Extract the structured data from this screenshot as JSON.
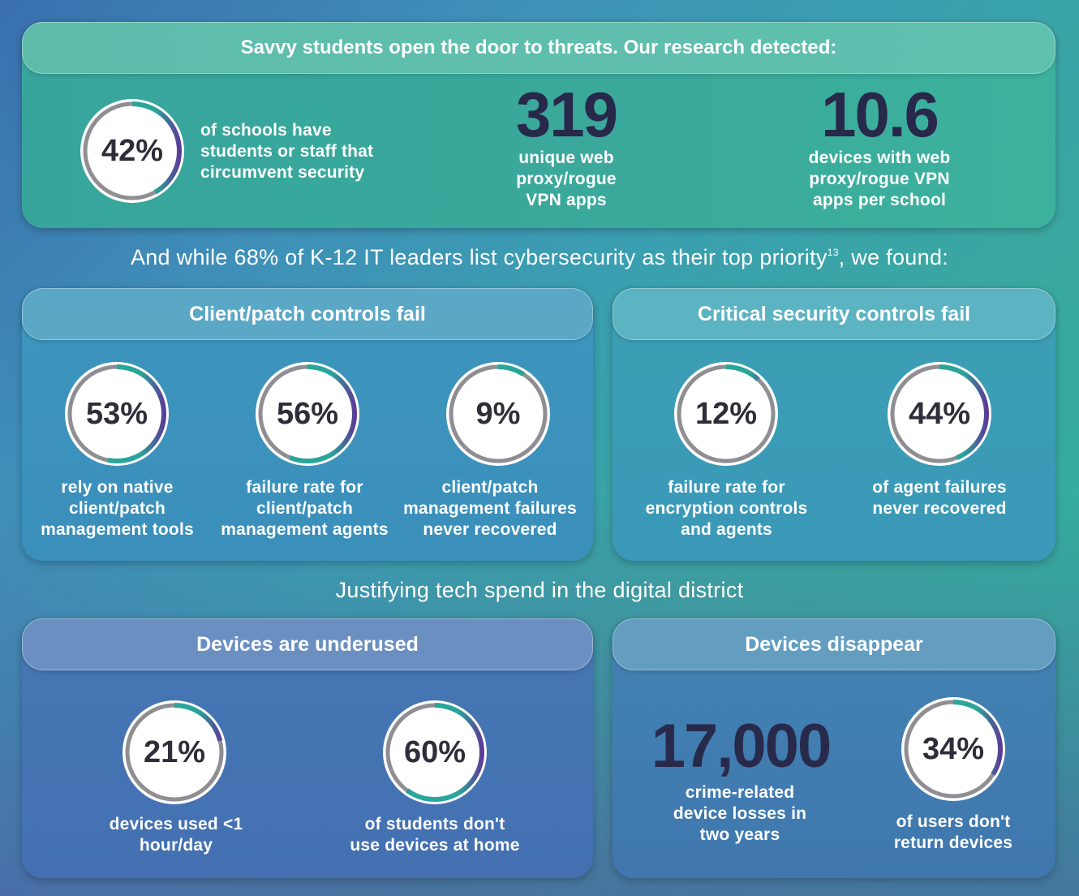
{
  "colors": {
    "ring_gray": "#8e8e93",
    "ring_teal": "#2aa59a",
    "ring_purple": "#5a3d97",
    "dark_text": "#27284a"
  },
  "threats": {
    "title": "Savvy students open the door to threats. Our research detected:",
    "ring": {
      "value": 42,
      "label": "42%"
    },
    "ring_text": "of schools have students or staff that circumvent security",
    "stat2": {
      "value": "319",
      "text": "unique web proxy/rogue VPN apps"
    },
    "stat3": {
      "value": "10.6",
      "text": "devices with web proxy/rogue VPN apps per school"
    }
  },
  "intro": {
    "before": "And while 68% of K-12 IT leaders list cybersecurity as their top priority",
    "footnote": "13",
    "after": ", we found:"
  },
  "client_patch": {
    "title": "Client/patch controls fail",
    "items": [
      {
        "value": 53,
        "label": "53%",
        "text": "rely on native client/patch management tools"
      },
      {
        "value": 56,
        "label": "56%",
        "text": "failure rate for client/patch management agents"
      },
      {
        "value": 9,
        "label": "9%",
        "text": "client/patch management failures never recovered"
      }
    ]
  },
  "critical": {
    "title": "Critical security controls fail",
    "items": [
      {
        "value": 12,
        "label": "12%",
        "text": "failure rate for encryption controls and agents"
      },
      {
        "value": 44,
        "label": "44%",
        "text": "of agent failures never recovered"
      }
    ]
  },
  "spend_heading": "Justifying tech spend in the digital district",
  "underused": {
    "title": "Devices are underused",
    "items": [
      {
        "value": 21,
        "label": "21%",
        "text": "devices used <1 hour/day"
      },
      {
        "value": 60,
        "label": "60%",
        "text": "of students don't use devices at home"
      }
    ]
  },
  "disappear": {
    "title": "Devices disappear",
    "big": {
      "value": "17,000",
      "text": "crime-related device losses in two years"
    },
    "ring": {
      "value": 34,
      "label": "34%",
      "text": "of users don't return devices"
    }
  }
}
